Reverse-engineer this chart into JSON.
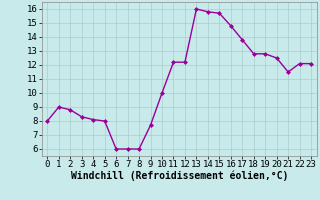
{
  "x": [
    0,
    1,
    2,
    3,
    4,
    5,
    6,
    7,
    8,
    9,
    10,
    11,
    12,
    13,
    14,
    15,
    16,
    17,
    18,
    19,
    20,
    21,
    22,
    23
  ],
  "y": [
    8.0,
    9.0,
    8.8,
    8.3,
    8.1,
    8.0,
    6.0,
    6.0,
    6.0,
    7.7,
    10.0,
    12.2,
    12.2,
    16.0,
    15.8,
    15.7,
    14.8,
    13.8,
    12.8,
    12.8,
    12.5,
    11.5,
    12.1,
    12.1
  ],
  "line_color": "#990099",
  "marker": "D",
  "marker_size": 2.0,
  "bg_color": "#c8eaea",
  "grid_color": "#aacccc",
  "xlabel": "Windchill (Refroidissement éolien,°C)",
  "xlim": [
    -0.5,
    23.5
  ],
  "ylim": [
    5.5,
    16.5
  ],
  "yticks": [
    6,
    7,
    8,
    9,
    10,
    11,
    12,
    13,
    14,
    15,
    16
  ],
  "xticks": [
    0,
    1,
    2,
    3,
    4,
    5,
    6,
    7,
    8,
    9,
    10,
    11,
    12,
    13,
    14,
    15,
    16,
    17,
    18,
    19,
    20,
    21,
    22,
    23
  ],
  "tick_fontsize": 6.5,
  "xlabel_fontsize": 7.0,
  "linewidth": 1.0
}
